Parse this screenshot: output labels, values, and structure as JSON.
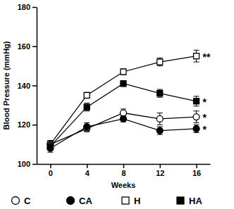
{
  "chart_data": {
    "type": "line",
    "x_label": "Weeks",
    "y_label": "Blood Pressure (mmHg)",
    "x": [
      0,
      4,
      8,
      12,
      16
    ],
    "xlim": [
      -1.5,
      17.5
    ],
    "xticks": [
      0,
      4,
      8,
      12,
      16
    ],
    "ylim": [
      100,
      180
    ],
    "yticks": [
      100,
      120,
      140,
      160,
      180
    ],
    "grid": false,
    "legend": "bottom",
    "series": [
      {
        "name": "C",
        "color": "#000000",
        "marker": "circle-open",
        "line_style": "solid",
        "values": [
          110,
          118,
          126,
          123,
          124
        ],
        "errors": [
          2,
          1.5,
          2,
          3,
          3
        ],
        "annotation": "*"
      },
      {
        "name": "CA",
        "color": "#000000",
        "marker": "circle",
        "line_style": "solid",
        "values": [
          108,
          119,
          123,
          117,
          118
        ],
        "errors": [
          2,
          2,
          1.5,
          2,
          2
        ],
        "annotation": "*"
      },
      {
        "name": "H",
        "color": "#000000",
        "marker": "square-open",
        "line_style": "solid",
        "values": [
          110,
          135,
          147,
          152,
          155
        ],
        "errors": [
          2,
          1.5,
          1.5,
          2,
          3
        ],
        "annotation": "**"
      },
      {
        "name": "HA",
        "color": "#000000",
        "marker": "square",
        "line_style": "solid",
        "values": [
          109,
          129,
          141,
          136,
          132
        ],
        "errors": [
          2,
          2,
          1.5,
          2,
          2.5
        ],
        "annotation": "*"
      }
    ]
  }
}
